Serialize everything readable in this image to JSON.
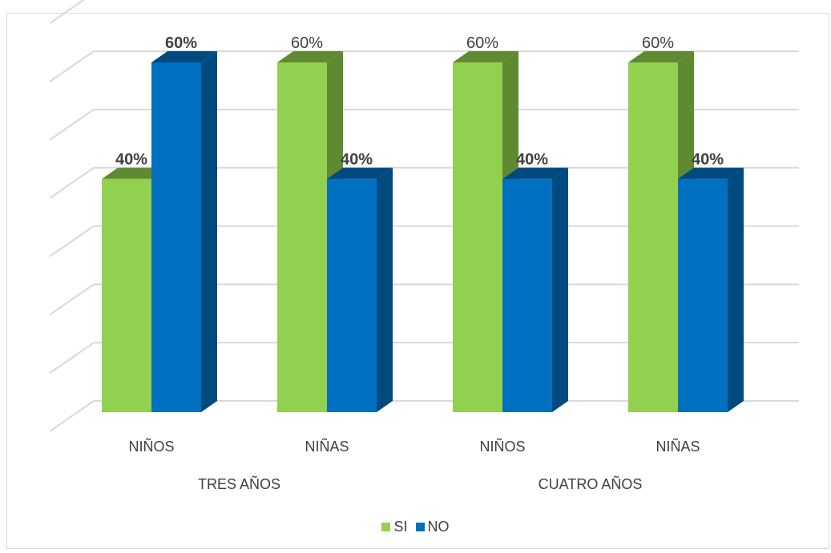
{
  "chart_data": {
    "type": "bar",
    "style": "3d-clustered-column",
    "groups": [
      {
        "label": "TRES AÑOS",
        "categories": [
          "NIÑOS",
          "NIÑAS"
        ]
      },
      {
        "label": "CUATRO AÑOS",
        "categories": [
          "NIÑOS",
          "NIÑAS"
        ]
      }
    ],
    "categories": [
      "NIÑOS",
      "NIÑAS",
      "NIÑOS",
      "NIÑAS"
    ],
    "series": [
      {
        "name": "SI",
        "values": [
          40,
          60,
          60,
          60
        ],
        "labels": [
          "40%",
          "60%",
          "60%",
          "60%"
        ],
        "label_bold": [
          true,
          false,
          false,
          false
        ],
        "color": "#92d050",
        "side_color": "#5f8a32"
      },
      {
        "name": "NO",
        "values": [
          60,
          40,
          40,
          40
        ],
        "labels": [
          "60%",
          "40%",
          "40%",
          "40%"
        ],
        "label_bold": [
          true,
          true,
          true,
          true
        ],
        "color": "#0070c0",
        "side_color": "#004a80"
      }
    ],
    "ylim": [
      0,
      70
    ],
    "grid": true,
    "axis_tick_labels_visible": false,
    "legend_position": "bottom"
  }
}
